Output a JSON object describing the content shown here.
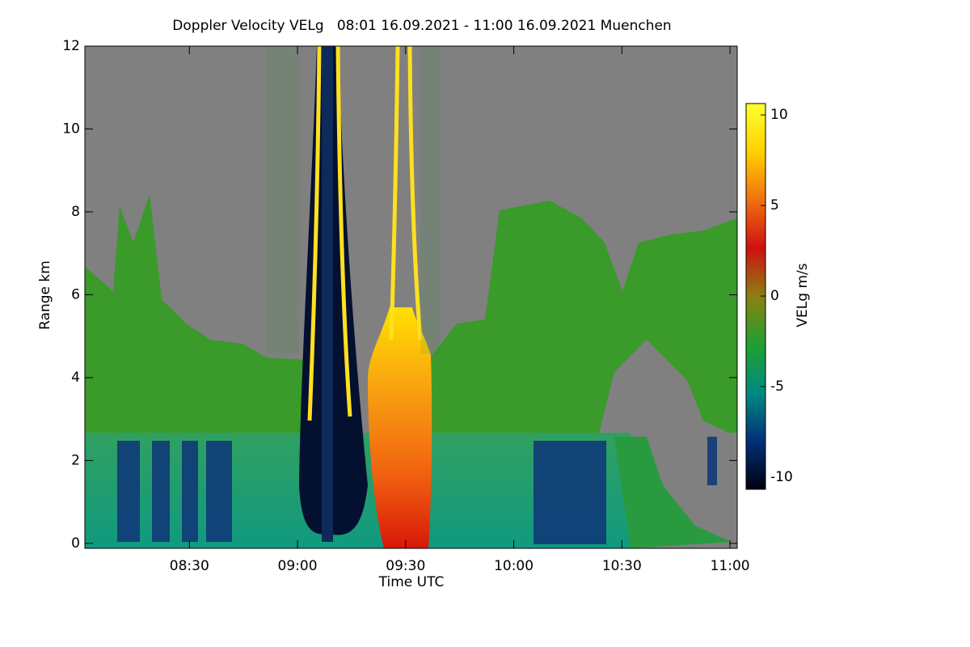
{
  "chart_data": {
    "type": "heatmap",
    "title": "Doppler Velocity VELg   08:01 16.09.2021 - 11:00 16.09.2021 Muenchen",
    "xlabel": "Time UTC",
    "ylabel": "Range km",
    "colorbar_label": "VELg m/s",
    "xlim": [
      481,
      662
    ],
    "xticks": [
      {
        "value": 510,
        "label": "08:30"
      },
      {
        "value": 540,
        "label": "09:00"
      },
      {
        "value": 570,
        "label": "09:30"
      },
      {
        "value": 600,
        "label": "10:00"
      },
      {
        "value": 630,
        "label": "10:30"
      },
      {
        "value": 660,
        "label": "11:00"
      }
    ],
    "ylim": [
      -0.12,
      12
    ],
    "yticks": [
      0,
      2,
      4,
      6,
      8,
      10,
      12
    ],
    "clim": [
      -10.67,
      10.63
    ],
    "cticks": [
      -10,
      -5,
      0,
      5,
      10
    ],
    "colormap": [
      "#000010",
      "#00307a",
      "#008a80",
      "#20a030",
      "#8a8010",
      "#d01010",
      "#f07010",
      "#ffd000",
      "#ffff30"
    ]
  }
}
